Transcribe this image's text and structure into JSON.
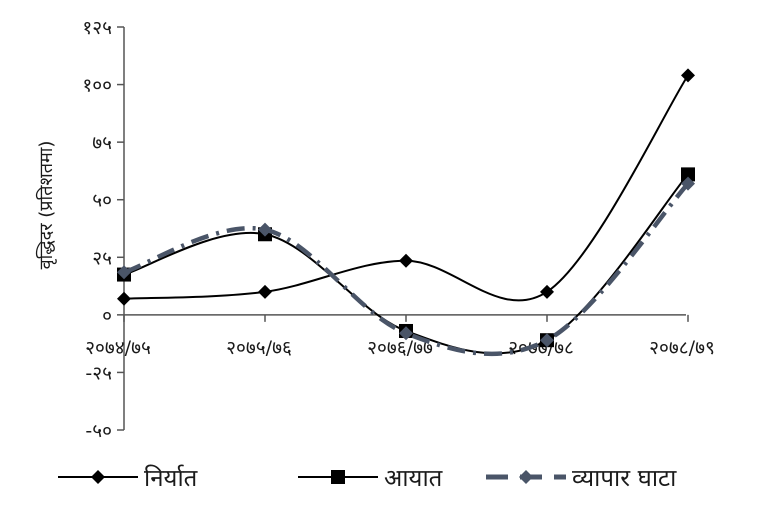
{
  "chart_data": {
    "type": "line",
    "smooth": true,
    "categories": [
      "२०७४/७५",
      "२०७५/७६",
      "२०७६/७७",
      "२०७७/७८",
      "२०७८/७९"
    ],
    "ylabel": "वृद्धिदर (प्रतिशतमा)",
    "ylim": [
      -50,
      125
    ],
    "yticks": [
      -50,
      -25,
      0,
      25,
      50,
      75,
      100,
      125
    ],
    "ytick_labels": [
      "-५०",
      "-२५",
      "०",
      "२५",
      "५०",
      "७५",
      "१००",
      "१२५"
    ],
    "grid": false,
    "legend_position": "bottom",
    "series": [
      {
        "name": "निर्यात",
        "values": [
          7,
          10,
          23.5,
          10,
          104
        ],
        "color": "#000000",
        "marker": "diamond",
        "dash": "solid"
      },
      {
        "name": "आयात",
        "values": [
          17.5,
          35,
          -7,
          -11,
          61
        ],
        "color": "#000000",
        "marker": "square",
        "dash": "solid"
      },
      {
        "name": "व्यापार घाटा",
        "values": [
          18.5,
          37,
          -8,
          -11,
          57
        ],
        "color": "#4a5568",
        "marker": "diamond",
        "dash": "dashed"
      }
    ]
  }
}
